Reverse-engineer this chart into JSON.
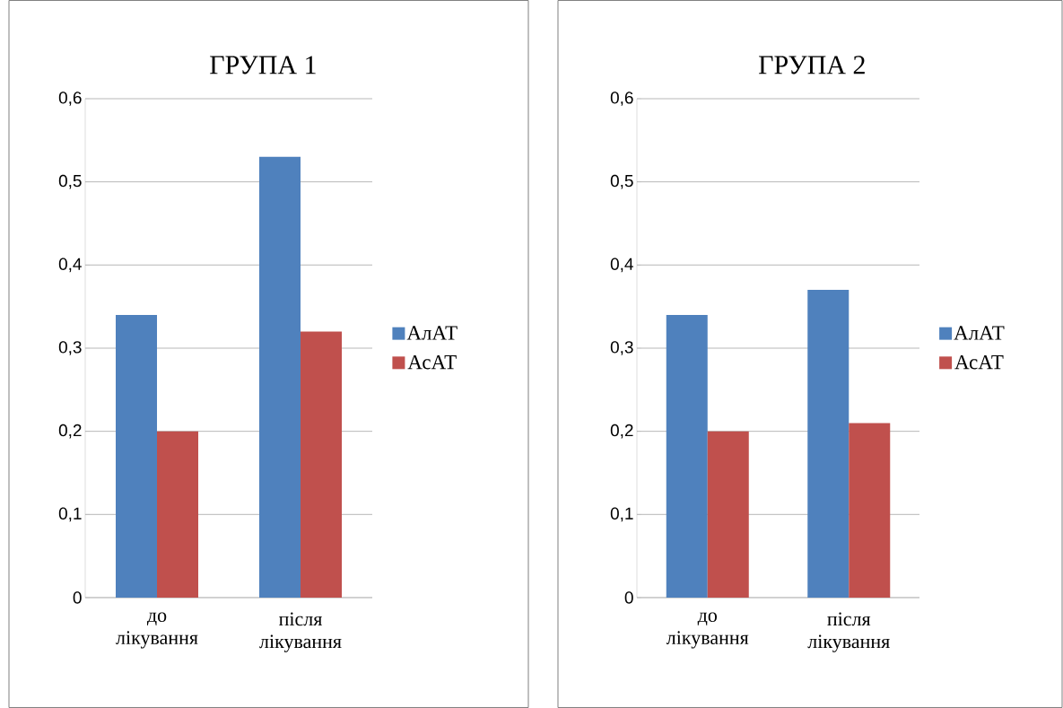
{
  "chart_data": [
    {
      "type": "bar",
      "title": "ГРУПА 1",
      "categories": [
        "до лікування",
        "після лікування"
      ],
      "series": [
        {
          "name": "АлАТ",
          "color": "#4f81bd",
          "values": [
            0.34,
            0.53
          ]
        },
        {
          "name": "АсАТ",
          "color": "#c0504d",
          "values": [
            0.2,
            0.32
          ]
        }
      ],
      "ylim": [
        0,
        0.6
      ],
      "yticks": [
        0,
        {
          "value": 0.1,
          "label": "0,1"
        },
        {
          "value": 0.2,
          "label": "0,2"
        },
        {
          "value": 0.3,
          "label": "0,3"
        },
        {
          "value": 0.4,
          "label": "0,4"
        },
        {
          "value": 0.5,
          "label": "0,5"
        },
        {
          "value": 0.6,
          "label": "0,6"
        }
      ],
      "grid": "y",
      "legend": "right"
    },
    {
      "type": "bar",
      "title": "ГРУПА 2",
      "categories": [
        "до лікування",
        "після лікування"
      ],
      "series": [
        {
          "name": "АлАТ",
          "color": "#4f81bd",
          "values": [
            0.34,
            0.37
          ]
        },
        {
          "name": "АсАТ",
          "color": "#c0504d",
          "values": [
            0.2,
            0.21
          ]
        }
      ],
      "ylim": [
        0,
        0.6
      ],
      "yticks": [
        0,
        {
          "value": 0.1,
          "label": "0,1"
        },
        {
          "value": 0.2,
          "label": "0,2"
        },
        {
          "value": 0.3,
          "label": "0,3"
        },
        {
          "value": 0.4,
          "label": "0,4"
        },
        {
          "value": 0.5,
          "label": "0,5"
        },
        {
          "value": 0.6,
          "label": "0,6"
        }
      ],
      "grid": "y",
      "legend": "right"
    }
  ]
}
